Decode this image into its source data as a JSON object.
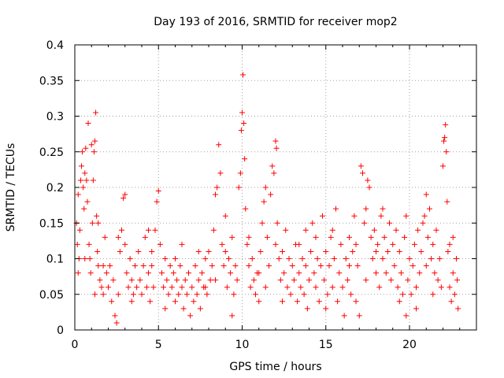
{
  "chart_data": {
    "type": "scatter",
    "title": "Day 193 of 2016, SRMTID for receiver mop2",
    "xlabel": "GPS time / hours",
    "ylabel": "SRMTID / TECUs",
    "xlim": [
      0,
      24
    ],
    "ylim": [
      0,
      0.4
    ],
    "x_ticks": [
      0,
      5,
      10,
      15,
      20
    ],
    "x_tick_labels": [
      "0",
      "5",
      "10",
      "15",
      "20"
    ],
    "y_ticks": [
      0,
      0.05,
      0.1,
      0.15,
      0.2,
      0.25,
      0.3,
      0.35,
      0.4
    ],
    "y_tick_labels": [
      "0",
      "0.05",
      "0.1",
      "0.15",
      "0.2",
      "0.25",
      "0.3",
      "0.35",
      "0.4"
    ],
    "grid": true,
    "marker": "+",
    "color": "#ff0000",
    "series": [
      {
        "name": "SRMTID",
        "points": [
          [
            0.1,
            0.15
          ],
          [
            0.15,
            0.12
          ],
          [
            0.2,
            0.19
          ],
          [
            0.25,
            0.1
          ],
          [
            0.3,
            0.14
          ],
          [
            0.35,
            0.21
          ],
          [
            0.4,
            0.23
          ],
          [
            0.45,
            0.25
          ],
          [
            0.5,
            0.2
          ],
          [
            0.55,
            0.17
          ],
          [
            0.6,
            0.22
          ],
          [
            0.65,
            0.255
          ],
          [
            0.7,
            0.21
          ],
          [
            0.75,
            0.18
          ],
          [
            0.8,
            0.29
          ],
          [
            0.85,
            0.12
          ],
          [
            0.9,
            0.1
          ],
          [
            0.95,
            0.08
          ],
          [
            1.0,
            0.26
          ],
          [
            1.05,
            0.15
          ],
          [
            1.1,
            0.21
          ],
          [
            1.15,
            0.25
          ],
          [
            1.2,
            0.265
          ],
          [
            1.25,
            0.305
          ],
          [
            1.3,
            0.16
          ],
          [
            1.35,
            0.11
          ],
          [
            1.4,
            0.09
          ],
          [
            1.5,
            0.07
          ],
          [
            1.6,
            0.06
          ],
          [
            1.7,
            0.05
          ],
          [
            1.8,
            0.13
          ],
          [
            1.9,
            0.08
          ],
          [
            2.0,
            0.06
          ],
          [
            2.1,
            0.09
          ],
          [
            2.2,
            0.04
          ],
          [
            2.3,
            0.07
          ],
          [
            2.4,
            0.02
          ],
          [
            2.5,
            0.01
          ],
          [
            2.6,
            0.05
          ],
          [
            2.7,
            0.11
          ],
          [
            2.8,
            0.14
          ],
          [
            2.9,
            0.185
          ],
          [
            3.0,
            0.19
          ],
          [
            3.1,
            0.08
          ],
          [
            3.2,
            0.06
          ],
          [
            3.3,
            0.1
          ],
          [
            3.4,
            0.07
          ],
          [
            3.5,
            0.05
          ],
          [
            3.6,
            0.09
          ],
          [
            3.7,
            0.06
          ],
          [
            3.8,
            0.11
          ],
          [
            3.9,
            0.07
          ],
          [
            4.0,
            0.05
          ],
          [
            4.1,
            0.09
          ],
          [
            4.2,
            0.13
          ],
          [
            4.3,
            0.06
          ],
          [
            4.4,
            0.08
          ],
          [
            4.5,
            0.04
          ],
          [
            4.6,
            0.11
          ],
          [
            4.7,
            0.06
          ],
          [
            4.8,
            0.14
          ],
          [
            4.9,
            0.18
          ],
          [
            5.0,
            0.195
          ],
          [
            5.1,
            0.12
          ],
          [
            5.2,
            0.08
          ],
          [
            5.3,
            0.06
          ],
          [
            5.4,
            0.1
          ],
          [
            5.5,
            0.07
          ],
          [
            5.6,
            0.05
          ],
          [
            5.7,
            0.09
          ],
          [
            5.8,
            0.06
          ],
          [
            5.9,
            0.08
          ],
          [
            6.0,
            0.04
          ],
          [
            6.1,
            0.07
          ],
          [
            6.2,
            0.05
          ],
          [
            6.3,
            0.09
          ],
          [
            6.4,
            0.06
          ],
          [
            6.5,
            0.03
          ],
          [
            6.6,
            0.07
          ],
          [
            6.7,
            0.05
          ],
          [
            6.8,
            0.08
          ],
          [
            6.9,
            0.02
          ],
          [
            7.0,
            0.06
          ],
          [
            7.1,
            0.04
          ],
          [
            7.2,
            0.09
          ],
          [
            7.3,
            0.05
          ],
          [
            7.4,
            0.07
          ],
          [
            7.5,
            0.03
          ],
          [
            7.6,
            0.08
          ],
          [
            7.7,
            0.06
          ],
          [
            7.8,
            0.1
          ],
          [
            7.9,
            0.05
          ],
          [
            8.0,
            0.11
          ],
          [
            8.1,
            0.07
          ],
          [
            8.2,
            0.09
          ],
          [
            8.3,
            0.14
          ],
          [
            8.4,
            0.19
          ],
          [
            8.5,
            0.2
          ],
          [
            8.6,
            0.26
          ],
          [
            8.7,
            0.22
          ],
          [
            8.8,
            0.12
          ],
          [
            8.9,
            0.09
          ],
          [
            9.0,
            0.11
          ],
          [
            9.1,
            0.06
          ],
          [
            9.2,
            0.1
          ],
          [
            9.3,
            0.08
          ],
          [
            9.4,
            0.13
          ],
          [
            9.5,
            0.05
          ],
          [
            9.6,
            0.09
          ],
          [
            9.7,
            0.07
          ],
          [
            9.8,
            0.2
          ],
          [
            9.9,
            0.22
          ],
          [
            9.95,
            0.28
          ],
          [
            10.0,
            0.305
          ],
          [
            10.05,
            0.358
          ],
          [
            10.1,
            0.29
          ],
          [
            10.15,
            0.24
          ],
          [
            10.2,
            0.17
          ],
          [
            10.3,
            0.12
          ],
          [
            10.4,
            0.09
          ],
          [
            10.5,
            0.06
          ],
          [
            10.6,
            0.1
          ],
          [
            10.7,
            0.07
          ],
          [
            10.8,
            0.05
          ],
          [
            10.9,
            0.08
          ],
          [
            11.0,
            0.04
          ],
          [
            11.1,
            0.11
          ],
          [
            11.2,
            0.15
          ],
          [
            11.3,
            0.18
          ],
          [
            11.4,
            0.2
          ],
          [
            11.5,
            0.13
          ],
          [
            11.6,
            0.09
          ],
          [
            11.7,
            0.19
          ],
          [
            11.8,
            0.23
          ],
          [
            11.9,
            0.22
          ],
          [
            12.0,
            0.265
          ],
          [
            12.05,
            0.255
          ],
          [
            12.1,
            0.15
          ],
          [
            12.2,
            0.1
          ],
          [
            12.3,
            0.07
          ],
          [
            12.4,
            0.11
          ],
          [
            12.5,
            0.08
          ],
          [
            12.6,
            0.14
          ],
          [
            12.7,
            0.06
          ],
          [
            12.8,
            0.1
          ],
          [
            12.9,
            0.05
          ],
          [
            13.0,
            0.09
          ],
          [
            13.1,
            0.07
          ],
          [
            13.2,
            0.12
          ],
          [
            13.3,
            0.04
          ],
          [
            13.4,
            0.08
          ],
          [
            13.5,
            0.06
          ],
          [
            13.6,
            0.1
          ],
          [
            13.7,
            0.05
          ],
          [
            13.8,
            0.09
          ],
          [
            13.9,
            0.03
          ],
          [
            14.0,
            0.07
          ],
          [
            14.1,
            0.11
          ],
          [
            14.2,
            0.15
          ],
          [
            14.3,
            0.08
          ],
          [
            14.4,
            0.06
          ],
          [
            14.5,
            0.1
          ],
          [
            14.6,
            0.04
          ],
          [
            14.7,
            0.09
          ],
          [
            14.8,
            0.16
          ],
          [
            14.9,
            0.07
          ],
          [
            15.0,
            0.11
          ],
          [
            15.1,
            0.05
          ],
          [
            15.2,
            0.09
          ],
          [
            15.3,
            0.13
          ],
          [
            15.4,
            0.06
          ],
          [
            15.5,
            0.1
          ],
          [
            15.6,
            0.17
          ],
          [
            15.7,
            0.04
          ],
          [
            15.8,
            0.08
          ],
          [
            15.9,
            0.12
          ],
          [
            16.0,
            0.06
          ],
          [
            16.1,
            0.02
          ],
          [
            16.2,
            0.1
          ],
          [
            16.3,
            0.07
          ],
          [
            16.4,
            0.13
          ],
          [
            16.5,
            0.05
          ],
          [
            16.6,
            0.11
          ],
          [
            16.7,
            0.16
          ],
          [
            16.8,
            0.04
          ],
          [
            16.9,
            0.09
          ],
          [
            17.0,
            0.02
          ],
          [
            17.1,
            0.23
          ],
          [
            17.2,
            0.22
          ],
          [
            17.3,
            0.15
          ],
          [
            17.4,
            0.17
          ],
          [
            17.5,
            0.21
          ],
          [
            17.6,
            0.2
          ],
          [
            17.7,
            0.13
          ],
          [
            17.8,
            0.1
          ],
          [
            17.9,
            0.14
          ],
          [
            18.0,
            0.08
          ],
          [
            18.1,
            0.12
          ],
          [
            18.2,
            0.06
          ],
          [
            18.3,
            0.16
          ],
          [
            18.4,
            0.1
          ],
          [
            18.5,
            0.13
          ],
          [
            18.6,
            0.08
          ],
          [
            18.7,
            0.11
          ],
          [
            18.8,
            0.15
          ],
          [
            18.9,
            0.07
          ],
          [
            19.0,
            0.12
          ],
          [
            19.1,
            0.09
          ],
          [
            19.2,
            0.14
          ],
          [
            19.3,
            0.06
          ],
          [
            19.4,
            0.11
          ],
          [
            19.5,
            0.08
          ],
          [
            19.6,
            0.05
          ],
          [
            19.7,
            0.13
          ],
          [
            19.8,
            0.16
          ],
          [
            19.9,
            0.07
          ],
          [
            20.0,
            0.1
          ],
          [
            20.1,
            0.05
          ],
          [
            20.2,
            0.09
          ],
          [
            20.3,
            0.12
          ],
          [
            20.4,
            0.06
          ],
          [
            20.5,
            0.14
          ],
          [
            20.6,
            0.08
          ],
          [
            20.7,
            0.11
          ],
          [
            20.8,
            0.15
          ],
          [
            20.9,
            0.16
          ],
          [
            21.0,
            0.19
          ],
          [
            21.1,
            0.13
          ],
          [
            21.2,
            0.17
          ],
          [
            21.3,
            0.1
          ],
          [
            21.4,
            0.12
          ],
          [
            21.5,
            0.08
          ],
          [
            21.6,
            0.14
          ],
          [
            21.7,
            0.07
          ],
          [
            21.8,
            0.1
          ],
          [
            21.9,
            0.06
          ],
          [
            22.0,
            0.23
          ],
          [
            22.05,
            0.265
          ],
          [
            22.1,
            0.27
          ],
          [
            22.15,
            0.288
          ],
          [
            22.2,
            0.25
          ],
          [
            22.25,
            0.18
          ],
          [
            22.3,
            0.11
          ],
          [
            22.4,
            0.06
          ],
          [
            22.5,
            0.04
          ],
          [
            22.6,
            0.08
          ],
          [
            22.7,
            0.05
          ],
          [
            22.8,
            0.1
          ],
          [
            22.85,
            0.07
          ],
          [
            22.9,
            0.03
          ],
          [
            0.2,
            0.08
          ],
          [
            0.6,
            0.1
          ],
          [
            1.2,
            0.05
          ],
          [
            1.7,
            0.09
          ],
          [
            2.6,
            0.13
          ],
          [
            3.4,
            0.04
          ],
          [
            4.4,
            0.14
          ],
          [
            5.4,
            0.03
          ],
          [
            6.4,
            0.12
          ],
          [
            7.4,
            0.11
          ],
          [
            8.4,
            0.07
          ],
          [
            9.4,
            0.02
          ],
          [
            10.4,
            0.13
          ],
          [
            11.4,
            0.06
          ],
          [
            12.4,
            0.04
          ],
          [
            13.4,
            0.12
          ],
          [
            14.4,
            0.13
          ],
          [
            15.4,
            0.14
          ],
          [
            16.4,
            0.09
          ],
          [
            17.4,
            0.07
          ],
          [
            18.4,
            0.17
          ],
          [
            19.4,
            0.04
          ],
          [
            20.4,
            0.03
          ],
          [
            21.4,
            0.05
          ],
          [
            22.4,
            0.12
          ],
          [
            3.0,
            0.12
          ],
          [
            6.0,
            0.1
          ],
          [
            9.0,
            0.16
          ],
          [
            12.0,
            0.12
          ],
          [
            15.0,
            0.03
          ],
          [
            18.0,
            0.11
          ],
          [
            21.0,
            0.09
          ],
          [
            1.4,
            0.15
          ],
          [
            4.6,
            0.09
          ],
          [
            7.8,
            0.06
          ],
          [
            11.0,
            0.08
          ],
          [
            13.8,
            0.14
          ],
          [
            16.8,
            0.12
          ],
          [
            19.8,
            0.02
          ],
          [
            22.6,
            0.13
          ]
        ]
      }
    ]
  }
}
